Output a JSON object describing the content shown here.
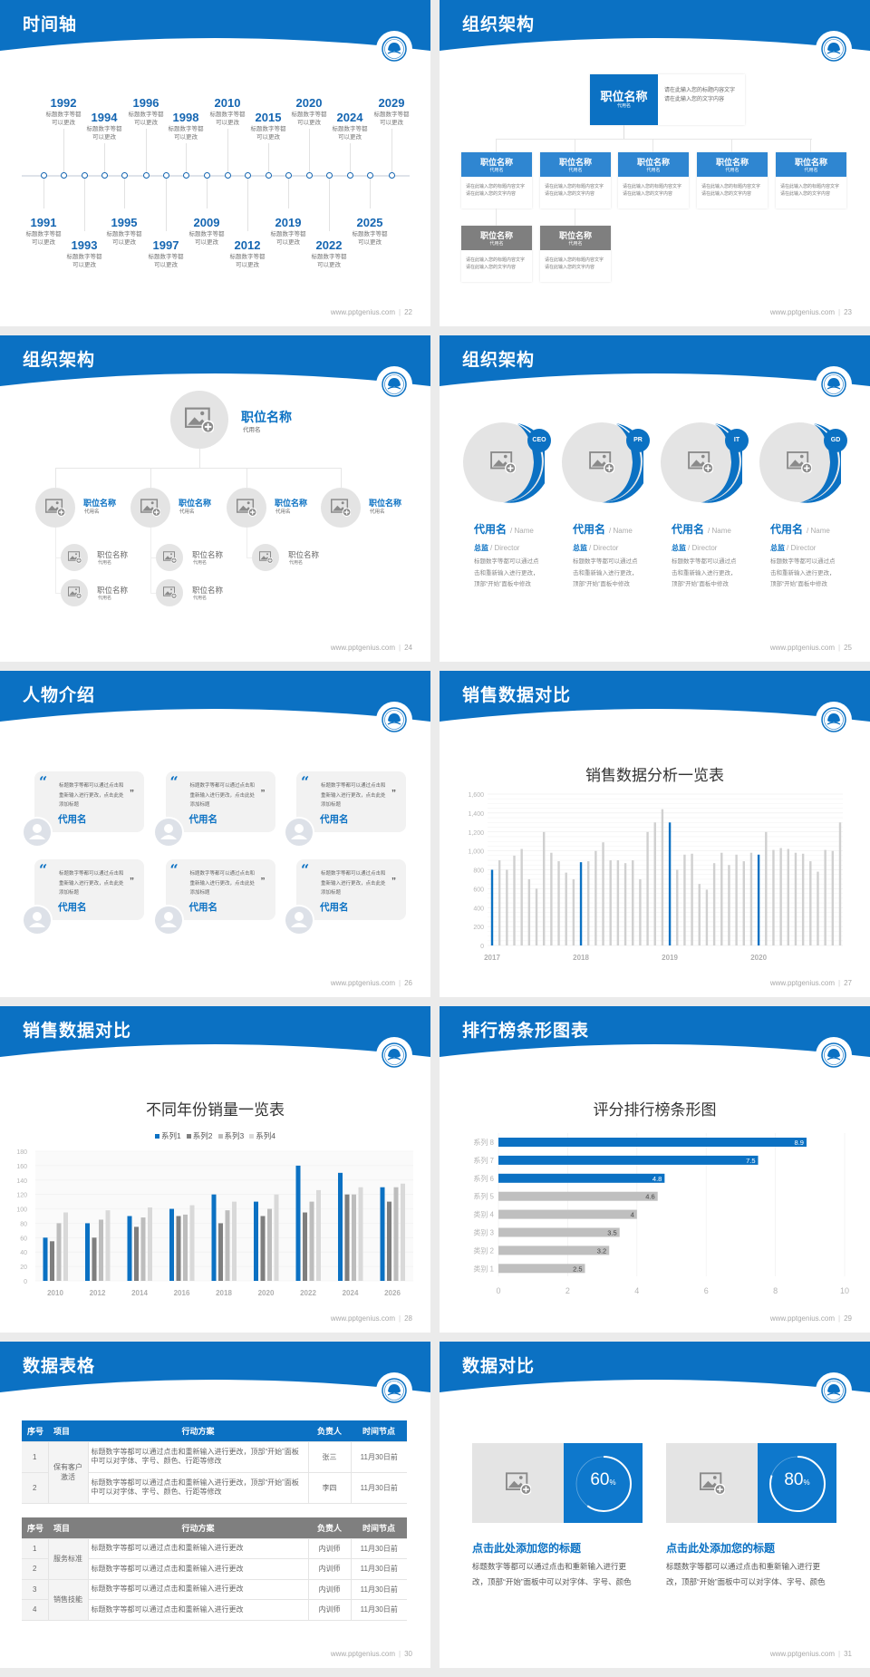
{
  "footer_url": "www.pptgenius.com",
  "colors": {
    "brand_blue": "#0b71c3",
    "gray_box": "#7f7f7f",
    "bar_gray": "#c9c9c9",
    "page_bg": "#ebebeb"
  },
  "slides": [
    {
      "title": "时间轴",
      "page": "22",
      "timeline": [
        {
          "year": "1991",
          "desc": "标题数字等都可以更改"
        },
        {
          "year": "1992",
          "desc": "标题数字等都可以更改"
        },
        {
          "year": "1993",
          "desc": "标题数字等都可以更改"
        },
        {
          "year": "1994",
          "desc": "标题数字等都可以更改"
        },
        {
          "year": "1995",
          "desc": "标题数字等都可以更改"
        },
        {
          "year": "1996",
          "desc": "标题数字等都可以更改"
        },
        {
          "year": "1997",
          "desc": "标题数字等都可以更改"
        },
        {
          "year": "1998",
          "desc": "标题数字等都可以更改"
        },
        {
          "year": "2009",
          "desc": "标题数字等都可以更改"
        },
        {
          "year": "2010",
          "desc": "标题数字等都可以更改"
        },
        {
          "year": "2012",
          "desc": "标题数字等都可以更改"
        },
        {
          "year": "2015",
          "desc": "标题数字等都可以更改"
        },
        {
          "year": "2019",
          "desc": "标题数字等都可以更改"
        },
        {
          "year": "2020",
          "desc": "标题数字等都可以更改"
        },
        {
          "year": "2022",
          "desc": "标题数字等都可以更改"
        },
        {
          "year": "2024",
          "desc": "标题数字等都可以更改"
        },
        {
          "year": "2025",
          "desc": "标题数字等都可以更改"
        },
        {
          "year": "2029",
          "desc": "标题数字等都可以更改"
        }
      ]
    },
    {
      "title": "组织架构",
      "page": "23",
      "top": {
        "title": "职位名称",
        "sub": "代用名",
        "desc": "请在此输入您的标题内容文字请在此输入您的文字内容"
      },
      "level2": [
        {
          "title": "职位名称",
          "sub": "代用名",
          "desc": "请在此输入您的标题内容文字请在此输入您的文字内容"
        },
        {
          "title": "职位名称",
          "sub": "代用名",
          "desc": "请在此输入您的标题内容文字请在此输入您的文字内容"
        },
        {
          "title": "职位名称",
          "sub": "代用名",
          "desc": "请在此输入您的标题内容文字请在此输入您的文字内容"
        },
        {
          "title": "职位名称",
          "sub": "代用名",
          "desc": "请在此输入您的标题内容文字请在此输入您的文字内容"
        },
        {
          "title": "职位名称",
          "sub": "代用名",
          "desc": "请在此输入您的标题内容文字请在此输入您的文字内容"
        }
      ],
      "level3": [
        {
          "title": "职位名称",
          "sub": "代用名",
          "desc": "请在此输入您的标题内容文字请在此输入您的文字内容"
        },
        {
          "title": "职位名称",
          "sub": "代用名",
          "desc": "请在此输入您的标题内容文字请在此输入您的文字内容"
        }
      ]
    },
    {
      "title": "组织架构",
      "page": "24",
      "top": {
        "title": "职位名称",
        "sub": "代用名"
      },
      "level2": [
        {
          "title": "职位名称",
          "sub": "代用名",
          "children": [
            {
              "title": "职位名称",
              "sub": "代用名"
            },
            {
              "title": "职位名称",
              "sub": "代用名"
            }
          ]
        },
        {
          "title": "职位名称",
          "sub": "代用名",
          "children": [
            {
              "title": "职位名称",
              "sub": "代用名"
            },
            {
              "title": "职位名称",
              "sub": "代用名"
            }
          ]
        },
        {
          "title": "职位名称",
          "sub": "代用名",
          "children": [
            {
              "title": "职位名称",
              "sub": "代用名"
            }
          ]
        },
        {
          "title": "职位名称",
          "sub": "代用名",
          "children": []
        }
      ]
    },
    {
      "title": "组织架构",
      "page": "25",
      "people": [
        {
          "badge": "CEO",
          "name": "代用名",
          "name_en": "/ Name",
          "role": "总监",
          "role_en": "/  Director",
          "desc": "标题数字等都可以通过点击和重新输入进行更改，顶部“开始”面板中修改"
        },
        {
          "badge": "PR",
          "name": "代用名",
          "name_en": "/ Name",
          "role": "总监",
          "role_en": "/  Director",
          "desc": "标题数字等都可以通过点击和重新输入进行更改，顶部“开始”面板中修改"
        },
        {
          "badge": "IT",
          "name": "代用名",
          "name_en": "/ Name",
          "role": "总监",
          "role_en": "/  Director",
          "desc": "标题数字等都可以通过点击和重新输入进行更改，顶部“开始”面板中修改"
        },
        {
          "badge": "GD",
          "name": "代用名",
          "name_en": "/ Name",
          "role": "总监",
          "role_en": "/  Director",
          "desc": "标题数字等都可以通过点击和重新输入进行更改，顶部“开始”面板中修改"
        }
      ]
    },
    {
      "title": "人物介绍",
      "page": "26",
      "cards": [
        {
          "quote": "标题数字等都可以通过点击和重新输入进行更改，点击此处添加标题",
          "name": "代用名"
        },
        {
          "quote": "标题数字等都可以通过点击和重新输入进行更改，点击此处添加标题",
          "name": "代用名"
        },
        {
          "quote": "标题数字等都可以通过点击和重新输入进行更改，点击此处添加标题",
          "name": "代用名"
        },
        {
          "quote": "标题数字等都可以通过点击和重新输入进行更改，点击此处添加标题",
          "name": "代用名"
        },
        {
          "quote": "标题数字等都可以通过点击和重新输入进行更改，点击此处添加标题",
          "name": "代用名"
        },
        {
          "quote": "标题数字等都可以通过点击和重新输入进行更改，点击此处添加标题",
          "name": "代用名"
        }
      ]
    },
    {
      "title": "销售数据对比",
      "page": "27"
    },
    {
      "title": "销售数据对比",
      "page": "28"
    },
    {
      "title": "排行榜条形图表",
      "page": "29"
    },
    {
      "title": "数据表格",
      "page": "30",
      "table1": {
        "headers": [
          "序号",
          "项目",
          "行动方案",
          "负责人",
          "时间节点"
        ],
        "groups": [
          {
            "project": "保有客户激活",
            "rows": [
              {
                "no": "1",
                "plan": "标题数字等都可以通过点击和重新输入进行更改，顶部“开始”面板中可以对字体、字号、颜色、行距等修改",
                "owner": "张三",
                "date": "11月30日前"
              },
              {
                "no": "2",
                "plan": "标题数字等都可以通过点击和重新输入进行更改，顶部“开始”面板中可以对字体、字号、颜色、行距等修改",
                "owner": "李四",
                "date": "11月30日前"
              }
            ]
          }
        ]
      },
      "table2": {
        "headers": [
          "序号",
          "项目",
          "行动方案",
          "负责人",
          "时间节点"
        ],
        "groups": [
          {
            "project": "服务标准",
            "rows": [
              {
                "no": "1",
                "plan": "标题数字等都可以通过点击和重新输入进行更改",
                "owner": "内训师",
                "date": "11月30日前"
              },
              {
                "no": "2",
                "plan": "标题数字等都可以通过点击和重新输入进行更改",
                "owner": "内训师",
                "date": "11月30日前"
              }
            ]
          },
          {
            "project": "销售技能",
            "rows": [
              {
                "no": "3",
                "plan": "标题数字等都可以通过点击和重新输入进行更改",
                "owner": "内训师",
                "date": "11月30日前"
              },
              {
                "no": "4",
                "plan": "标题数字等都可以通过点击和重新输入进行更改",
                "owner": "内训师",
                "date": "11月30日前"
              }
            ]
          }
        ]
      }
    },
    {
      "title": "数据对比",
      "page": "31",
      "items": [
        {
          "percent": 60,
          "value": "60",
          "unit": "%",
          "heading": "点击此处添加您的标题",
          "desc": "标题数字等都可以通过点击和重新输入进行更改，顶部“开始”面板中可以对字体、字号、颜色"
        },
        {
          "percent": 80,
          "value": "80",
          "unit": "%",
          "heading": "点击此处添加您的标题",
          "desc": "标题数字等都可以通过点击和重新输入进行更改，顶部“开始”面板中可以对字体、字号、颜色"
        }
      ]
    }
  ],
  "chart_data": [
    {
      "slide": "27",
      "type": "bar",
      "title": "销售数据分析一览表",
      "x_tick_labels": [
        "2017",
        "2018",
        "2019",
        "2020"
      ],
      "values": [
        800,
        900,
        800,
        950,
        1020,
        700,
        600,
        1200,
        980,
        890,
        770,
        700,
        880,
        890,
        1000,
        1090,
        900,
        900,
        870,
        900,
        700,
        1200,
        1300,
        1440,
        1300,
        800,
        960,
        970,
        650,
        590,
        870,
        980,
        850,
        960,
        890,
        980,
        960,
        1200,
        1010,
        1030,
        1020,
        980,
        970,
        890,
        780,
        1010,
        1000,
        1300
      ],
      "highlight_indices": [
        0,
        12,
        24,
        36
      ],
      "highlight_color": "#0b71c3",
      "bar_color": "#d0d0d0",
      "ylim": [
        0,
        1600
      ],
      "yticks": [
        "0",
        "200",
        "400",
        "600",
        "800",
        "1,000",
        "1,200",
        "1,400",
        "1,600"
      ],
      "grid": true
    },
    {
      "slide": "28",
      "type": "bar",
      "title": "不同年份销量一览表",
      "categories": [
        "2010",
        "2012",
        "2014",
        "2016",
        "2018",
        "2020",
        "2022",
        "2024",
        "2026"
      ],
      "series": [
        {
          "name": "系列1",
          "color": "#0b71c3",
          "values": [
            60,
            80,
            90,
            100,
            120,
            110,
            160,
            150,
            130
          ]
        },
        {
          "name": "系列2",
          "color": "#7f7f7f",
          "values": [
            55,
            60,
            75,
            90,
            80,
            90,
            95,
            120,
            110
          ]
        },
        {
          "name": "系列3",
          "color": "#bdbdbd",
          "values": [
            80,
            85,
            88,
            92,
            98,
            100,
            110,
            120,
            130
          ]
        },
        {
          "name": "系列4",
          "color": "#d9d9d9",
          "values": [
            95,
            98,
            102,
            105,
            110,
            120,
            126,
            130,
            135
          ]
        }
      ],
      "ylim": [
        0,
        180
      ],
      "yticks": [
        "0",
        "20",
        "40",
        "60",
        "80",
        "100",
        "120",
        "140",
        "160",
        "180"
      ],
      "legend": "top",
      "grid": true
    },
    {
      "slide": "29",
      "type": "bar",
      "orientation": "horizontal",
      "title": "评分排行榜条形图",
      "categories": [
        "系列 8",
        "系列 7",
        "系列 6",
        "系列 5",
        "类别 4",
        "类别 3",
        "类别 2",
        "类别 1"
      ],
      "values": [
        8.9,
        7.5,
        4.8,
        4.6,
        4,
        3.5,
        3.2,
        2.5
      ],
      "value_labels": [
        "8.9",
        "7.5",
        "4.8",
        "4.6",
        "4",
        "3.5",
        "3.2",
        "2.5"
      ],
      "colors": [
        "#0b71c3",
        "#0b71c3",
        "#0b71c3",
        "#bfbfbf",
        "#bfbfbf",
        "#bfbfbf",
        "#bfbfbf",
        "#bfbfbf"
      ],
      "xlim": [
        0,
        10
      ],
      "xticks": [
        "0",
        "2",
        "4",
        "6",
        "8",
        "10"
      ],
      "grid": true
    }
  ]
}
